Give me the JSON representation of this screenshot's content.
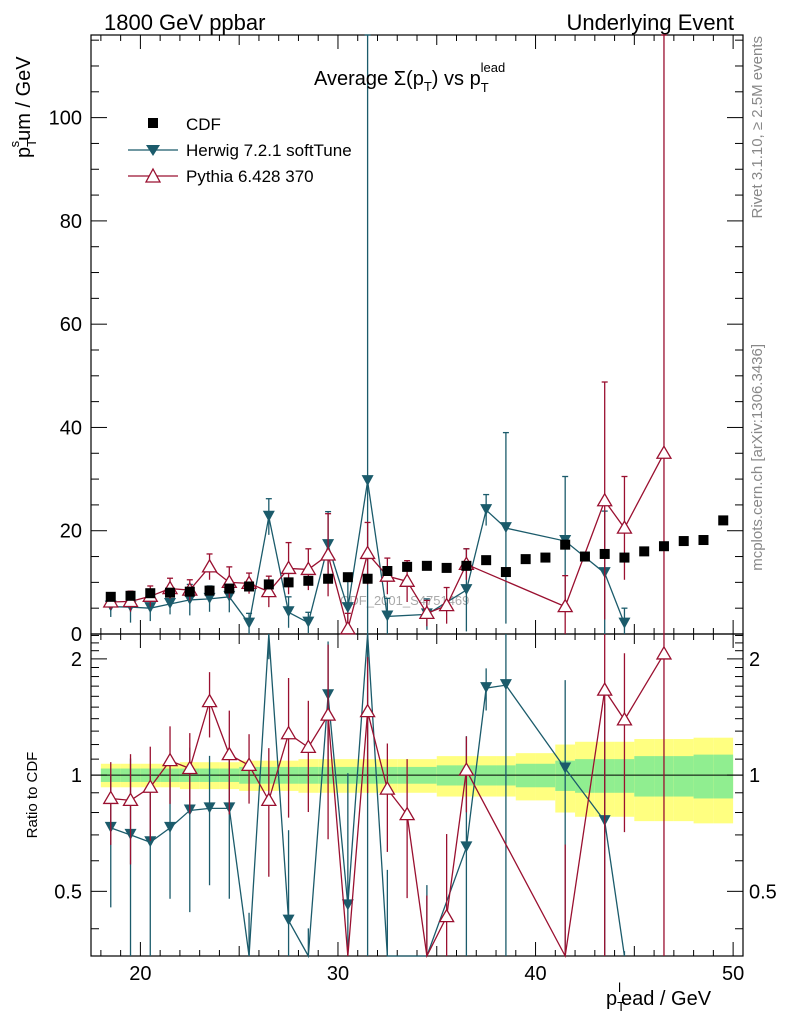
{
  "header": {
    "left": "1800 GeV ppbar",
    "right": "Underlying Event"
  },
  "side_text": {
    "rivet": "Rivet 3.1.10, ≥ 2.5M events",
    "mcplots": "mcplots.cern.ch [arXiv:1306.3436]"
  },
  "watermark": "CDF_2001_S4751469",
  "chart_data": {
    "type": "scatter",
    "title": "Average Σ(p_T) vs p_T^lead",
    "title_main": "Average Σ(p",
    "title_sub1": "T",
    "title_mid": ") vs p",
    "title_sub2": "T",
    "title_sup2": "lead",
    "xlabel": "p_T^lead / GeV",
    "xlabel_main": "p",
    "xlabel_sub": "T",
    "xlabel_sup": "l",
    "xlabel_rest": "ead / GeV",
    "ylabel": "p_T^sum / GeV",
    "ylabel_main": "p",
    "ylabel_sub": "T",
    "ylabel_sup": "s",
    "ylabel_rest": "um / GeV",
    "ratio_ylabel": "Ratio to CDF",
    "xlim": [
      17.5,
      50.5
    ],
    "ylim": [
      0,
      116
    ],
    "ratio_ylim": [
      0.34,
      2.32
    ],
    "x_ticks": [
      20,
      30,
      40,
      50
    ],
    "x_tick_labels": [
      "20",
      "30",
      "40",
      "50"
    ],
    "y_ticks": [
      0,
      20,
      40,
      60,
      80,
      100
    ],
    "y_tick_labels": [
      "0",
      "20",
      "40",
      "60",
      "80",
      "100"
    ],
    "ratio_ticks": [
      0.5,
      1,
      2
    ],
    "ratio_tick_labels": [
      "0.5",
      "1",
      "2"
    ],
    "legend": [
      {
        "label": "CDF",
        "marker": "square",
        "color": "#000000"
      },
      {
        "label": "Herwig 7.2.1 softTune",
        "marker": "triangle-down",
        "color": "#1b5b6b"
      },
      {
        "label": "Pythia 6.428 370",
        "marker": "triangle-up-open",
        "color": "#9a1030"
      }
    ],
    "data": {
      "x": [
        18.5,
        19.5,
        20.5,
        21.5,
        22.5,
        23.5,
        24.5,
        25.5,
        26.5,
        27.5,
        28.5,
        29.5,
        30.5,
        31.5,
        32.5,
        33.5,
        34.5,
        35.5,
        36.5,
        37.5,
        38.5,
        39.5,
        40.5,
        41.5,
        42.5,
        43.5,
        44.5,
        45.5,
        46.5,
        47.5,
        48.5,
        49.5
      ],
      "y": [
        7.2,
        7.4,
        7.9,
        8.0,
        8.2,
        8.4,
        8.8,
        9.2,
        9.6,
        10.0,
        10.3,
        10.7,
        11.0,
        10.7,
        12.2,
        13.0,
        13.2,
        12.8,
        13.2,
        14.3,
        12.0,
        14.5,
        14.8,
        17.3,
        15.0,
        15.5,
        14.8,
        16.0,
        17.0,
        18.0,
        18.2,
        22.0
      ]
    },
    "band_inner": [
      0.04,
      0.04,
      0.04,
      0.04,
      0.04,
      0.04,
      0.04,
      0.05,
      0.05,
      0.05,
      0.05,
      0.05,
      0.05,
      0.05,
      0.05,
      0.05,
      0.05,
      0.06,
      0.06,
      0.06,
      0.06,
      0.07,
      0.07,
      0.09,
      0.1,
      0.1,
      0.1,
      0.12,
      0.12,
      0.12,
      0.13,
      0.13
    ],
    "band_outer": [
      0.07,
      0.07,
      0.07,
      0.07,
      0.08,
      0.08,
      0.08,
      0.09,
      0.09,
      0.09,
      0.1,
      0.1,
      0.1,
      0.1,
      0.1,
      0.1,
      0.1,
      0.12,
      0.12,
      0.12,
      0.12,
      0.14,
      0.14,
      0.2,
      0.22,
      0.22,
      0.22,
      0.24,
      0.24,
      0.24,
      0.25,
      0.25
    ],
    "series": [
      {
        "name": "Herwig 7.2.1 softTune",
        "x": [
          18.5,
          19.5,
          20.5,
          21.5,
          22.5,
          23.5,
          24.5,
          25.5,
          26.5,
          27.5,
          28.5,
          29.5,
          30.5,
          31.5,
          32.5,
          34.5,
          36.5,
          37.5,
          38.5,
          41.5,
          43.5,
          44.5
        ],
        "y": [
          5.3,
          5.2,
          5.0,
          5.8,
          6.6,
          6.8,
          7.2,
          2.0,
          22.7,
          4.2,
          2.2,
          17.2,
          5.0,
          29.6,
          3.4,
          3.8,
          8.5,
          24.0,
          20.5,
          18.0,
          11.8,
          2.0
        ],
        "err": [
          2.0,
          3.0,
          2.5,
          2.0,
          3.0,
          2.5,
          3.0,
          2.0,
          3.5,
          3.0,
          2.0,
          6.5,
          6.0,
          90.0,
          3.5,
          3.0,
          8.0,
          3.0,
          18.5,
          12.5,
          12.0,
          3.0
        ],
        "ratio": [
          0.73,
          0.7,
          0.67,
          0.73,
          0.81,
          0.82,
          0.82,
          0.22,
          2.36,
          0.42,
          0.21,
          1.61,
          0.46,
          2.76,
          0.28,
          0.29,
          0.65,
          1.68,
          1.71,
          1.04,
          0.76,
          0.14
        ]
      },
      {
        "name": "Pythia 6.428 370",
        "x": [
          18.5,
          19.5,
          20.5,
          21.5,
          22.5,
          23.5,
          24.5,
          25.5,
          26.5,
          27.5,
          28.5,
          29.5,
          30.5,
          31.5,
          32.5,
          33.5,
          34.5,
          35.5,
          36.5,
          41.5,
          43.5,
          44.5,
          46.5
        ],
        "y": [
          6.2,
          6.3,
          7.3,
          8.8,
          8.5,
          13.0,
          10.0,
          9.8,
          8.2,
          12.7,
          12.5,
          15.3,
          1.0,
          15.6,
          11.2,
          10.2,
          4.0,
          5.5,
          13.5,
          5.3,
          25.8,
          20.5,
          35.0
        ],
        "err": [
          1.5,
          2.0,
          2.0,
          2.0,
          2.0,
          2.5,
          3.0,
          2.0,
          3.0,
          5.0,
          4.0,
          8.0,
          3.0,
          6.0,
          3.5,
          4.0,
          2.5,
          3.5,
          3.0,
          6.0,
          23.0,
          10.0,
          300.0
        ],
        "ratio": [
          0.87,
          0.86,
          0.93,
          1.09,
          1.04,
          1.55,
          1.13,
          1.06,
          0.86,
          1.28,
          1.18,
          1.43,
          0.09,
          1.46,
          0.92,
          0.79,
          0.3,
          0.43,
          1.03,
          0.31,
          1.66,
          1.39,
          2.06
        ]
      }
    ]
  }
}
